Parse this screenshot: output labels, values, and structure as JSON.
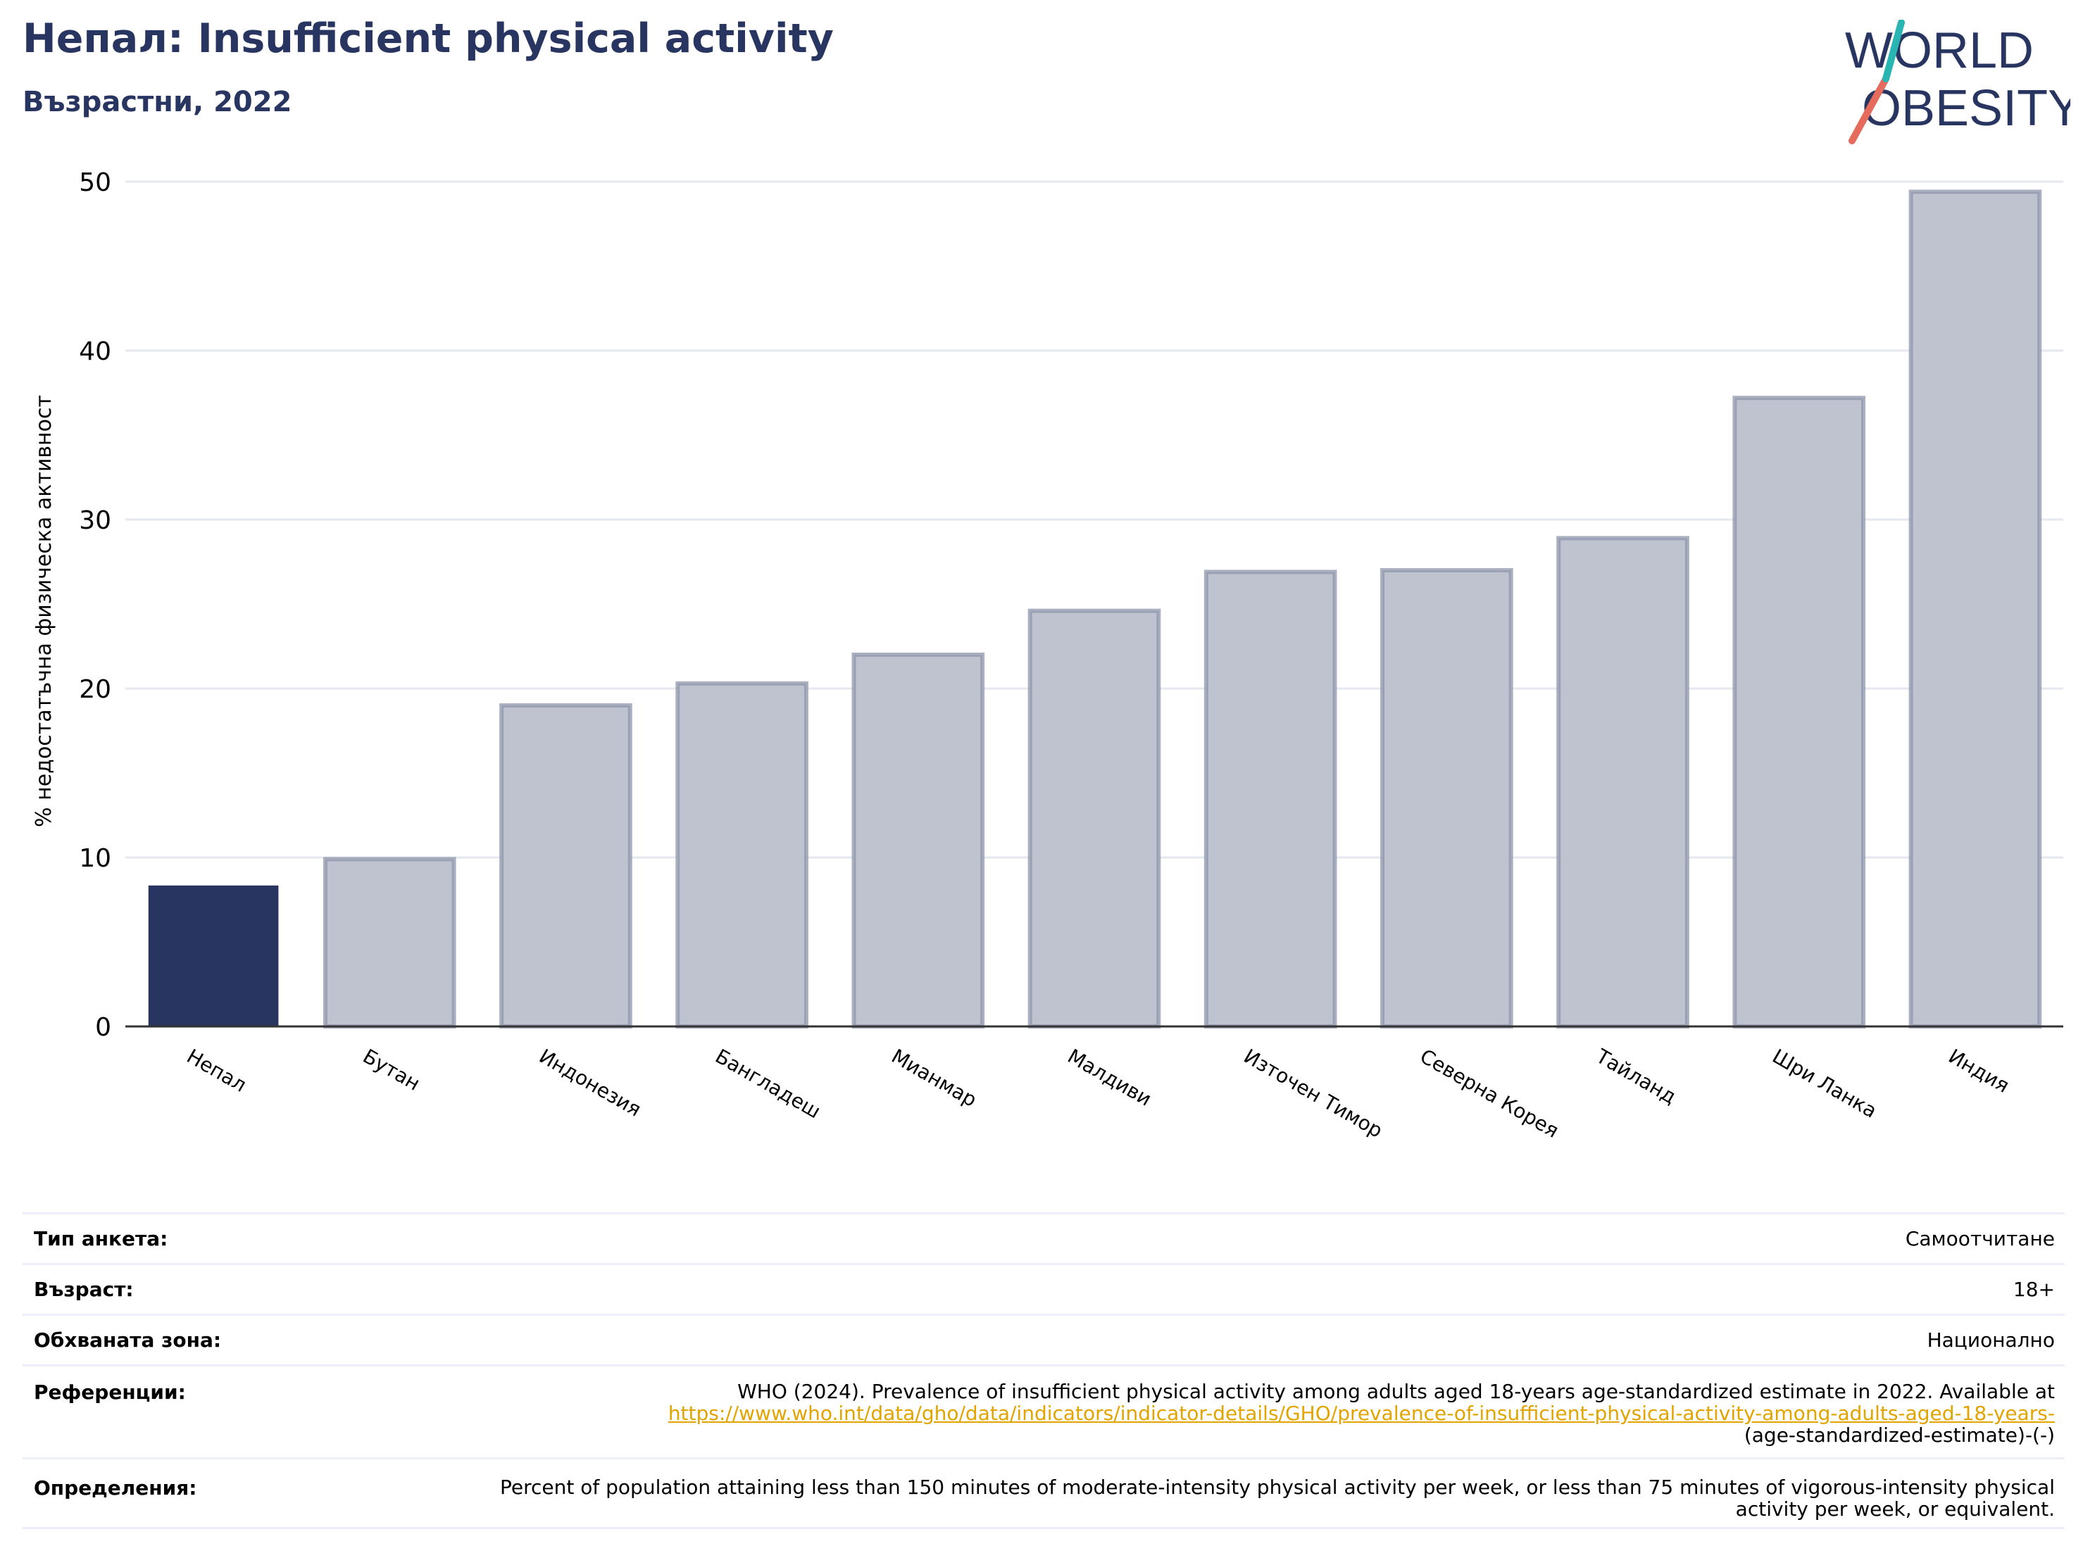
{
  "header": {
    "title": "Непал: Insufficient physical activity",
    "subtitle": "Възрастни, 2022"
  },
  "logo": {
    "line1": "WORLD",
    "line2": "OBESITY",
    "accent_colors": [
      "#e56b5c",
      "#2bb5b2"
    ],
    "text_color": "#283560"
  },
  "chart_data": {
    "type": "bar",
    "title": "",
    "xlabel": "",
    "ylabel": "% недостатъчна физическа активност",
    "ylim": [
      0,
      50
    ],
    "yticks": [
      0,
      10,
      20,
      30,
      40,
      50
    ],
    "grid": true,
    "categories": [
      "Непал",
      "Бутан",
      "Индонезия",
      "Бангладеш",
      "Мианмар",
      "Малдиви",
      "Източен Тимор",
      "Северна Корея",
      "Тайланд",
      "Шри Ланка",
      "Индия"
    ],
    "values": [
      8.3,
      9.9,
      19.0,
      20.3,
      22.0,
      24.6,
      26.9,
      27.0,
      28.9,
      37.2,
      49.4
    ],
    "highlight": "Непал",
    "colors": {
      "highlight": "#283560",
      "other_fill": "#bfc3cf",
      "other_edge": "#8f95ab",
      "grid": "#e6e8f0"
    }
  },
  "info": {
    "rows": [
      {
        "label": "Тип анкета:",
        "value": "Самоотчитане"
      },
      {
        "label": "Възраст:",
        "value": "18+"
      },
      {
        "label": "Обхваната зона:",
        "value": "Национално"
      },
      {
        "label": "Референции:",
        "value": "WHO (2024). Prevalence of insufficient physical activity among adults aged 18-years age-standardized estimate in 2022. Available at",
        "link": "https://www.who.int/data/gho/data/indicators/indicator-details/GHO/prevalence-of-insufficient-physical-activity-among-adults-aged-18-years-",
        "value_after": "(age-standardized-estimate)-(-)"
      },
      {
        "label": "Определения:",
        "value": "Percent of population attaining less than 150 minutes of moderate-intensity physical activity per week, or less than 75 minutes of vigorous-intensity physical activity per week, or equivalent."
      }
    ]
  }
}
